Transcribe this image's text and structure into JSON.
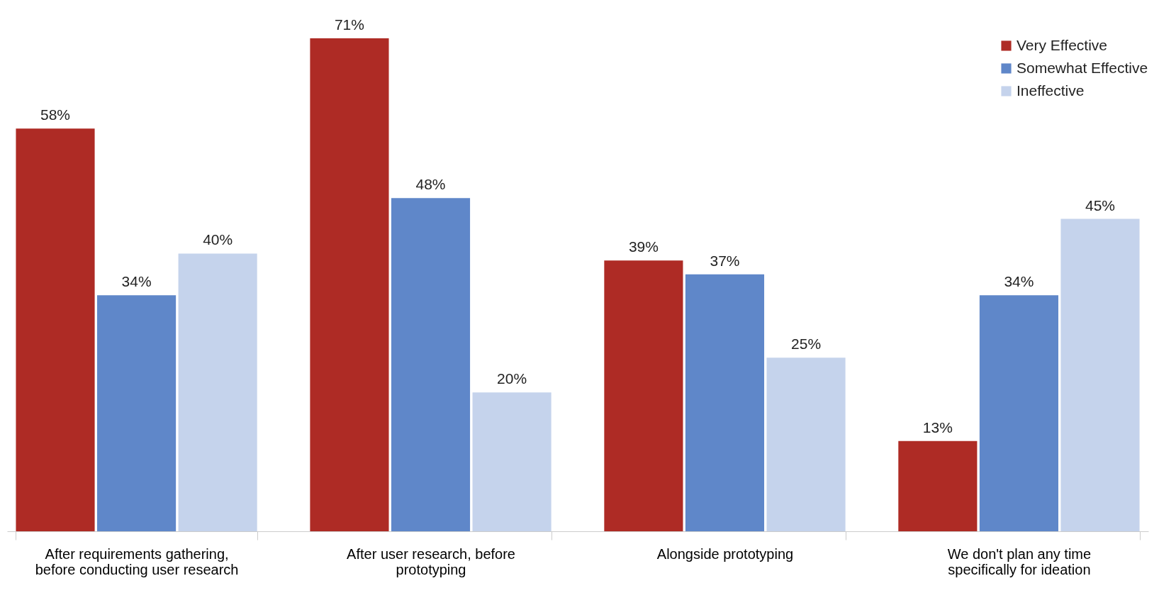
{
  "chart_data": {
    "type": "bar",
    "categories": [
      "After requirements gathering, before conducting user research",
      "After user research, before prototyping",
      "Alongside prototyping",
      "We don't plan any time specifically for ideation"
    ],
    "series": [
      {
        "name": "Very Effective",
        "color": "#ae2b25",
        "values": [
          58,
          71,
          39,
          13
        ],
        "value_labels": [
          "58%",
          "71%",
          "39%",
          "13%"
        ]
      },
      {
        "name": "Somewhat Effective",
        "color": "#5f87c9",
        "values": [
          34,
          48,
          37,
          34
        ],
        "value_labels": [
          "34%",
          "48%",
          "37%",
          "34%"
        ]
      },
      {
        "name": "Ineffective",
        "color": "#c5d3ec",
        "values": [
          40,
          20,
          25,
          45
        ],
        "value_labels": [
          "40%",
          "20%",
          "25%",
          "45%"
        ]
      }
    ],
    "legend": "top right"
  }
}
